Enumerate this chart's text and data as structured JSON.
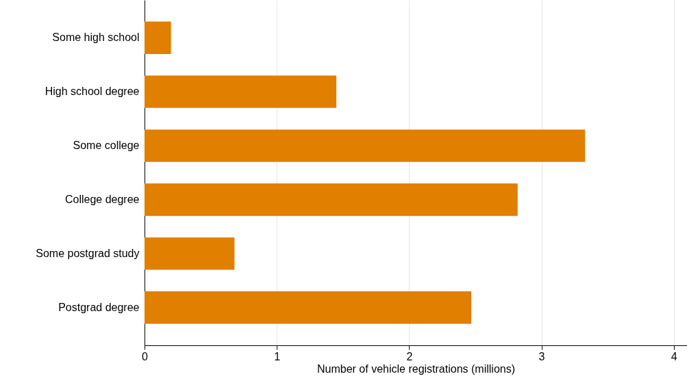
{
  "chart_data": {
    "type": "bar",
    "orientation": "horizontal",
    "xlabel": "Number of vehicle registrations (millions)",
    "categories": [
      "Some high school",
      "High school degree",
      "Some college",
      "College degree",
      "Some postgrad study",
      "Postgrad degree"
    ],
    "values": [
      0.2,
      1.45,
      3.33,
      2.82,
      0.68,
      2.47
    ],
    "color": "#e07f00",
    "xlim": [
      0,
      4.1
    ],
    "xticks": [
      0,
      1,
      2,
      3,
      4
    ],
    "grid": "x"
  }
}
